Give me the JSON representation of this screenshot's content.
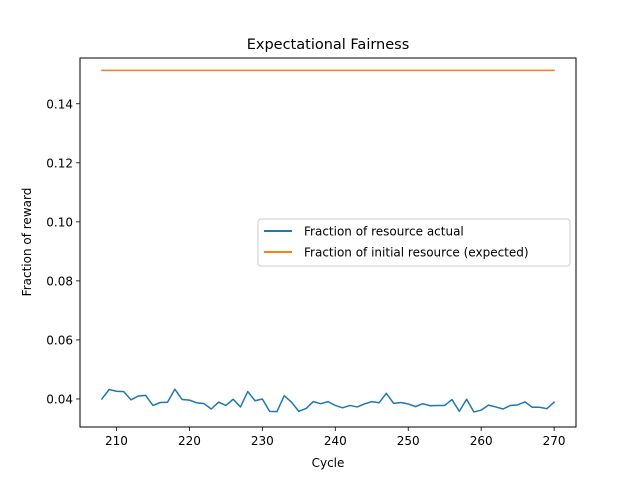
{
  "chart_data": {
    "type": "line",
    "title": "Expectational Fairness",
    "xlabel": "Cycle",
    "ylabel": "Fraction of reward",
    "xlim": [
      205,
      273
    ],
    "ylim": [
      0.0305,
      0.1555
    ],
    "xticks": [
      210,
      220,
      230,
      240,
      250,
      260,
      270
    ],
    "xtick_labels": [
      "210",
      "220",
      "230",
      "240",
      "250",
      "260",
      "270"
    ],
    "yticks": [
      0.04,
      0.06,
      0.08,
      0.1,
      0.12,
      0.14
    ],
    "ytick_labels": [
      "0.04",
      "0.06",
      "0.08",
      "0.10",
      "0.12",
      "0.14"
    ],
    "grid": false,
    "legend_position": "center-right",
    "x": [
      208,
      209,
      210,
      211,
      212,
      213,
      214,
      215,
      216,
      217,
      218,
      219,
      220,
      221,
      222,
      223,
      224,
      225,
      226,
      227,
      228,
      229,
      230,
      231,
      232,
      233,
      234,
      235,
      236,
      237,
      238,
      239,
      240,
      241,
      242,
      243,
      244,
      245,
      246,
      247,
      248,
      249,
      250,
      251,
      252,
      253,
      254,
      255,
      256,
      257,
      258,
      259,
      260,
      261,
      262,
      263,
      264,
      265,
      266,
      267,
      268,
      269,
      270
    ],
    "series": [
      {
        "name": "Fraction of resource actual",
        "color": "#1f77b4",
        "values": [
          0.04,
          0.0432,
          0.0426,
          0.0425,
          0.0397,
          0.041,
          0.0412,
          0.0378,
          0.0388,
          0.0389,
          0.0433,
          0.0398,
          0.0396,
          0.0387,
          0.0384,
          0.0366,
          0.0389,
          0.0378,
          0.0399,
          0.0373,
          0.0425,
          0.0394,
          0.04,
          0.0358,
          0.0357,
          0.0411,
          0.0389,
          0.0358,
          0.0368,
          0.0391,
          0.0384,
          0.0391,
          0.0378,
          0.037,
          0.0378,
          0.0373,
          0.0383,
          0.0391,
          0.0387,
          0.0419,
          0.0385,
          0.0388,
          0.0383,
          0.0374,
          0.0384,
          0.0377,
          0.0378,
          0.0378,
          0.0398,
          0.0358,
          0.0399,
          0.0356,
          0.0362,
          0.0379,
          0.0373,
          0.0366,
          0.0378,
          0.038,
          0.039,
          0.0372,
          0.0372,
          0.0367,
          0.0389
        ]
      },
      {
        "name": "Fraction of initial resource (expected)",
        "color": "#ff7f0e",
        "values": [
          0.1513,
          0.1513,
          0.1513,
          0.1513,
          0.1513,
          0.1513,
          0.1513,
          0.1513,
          0.1513,
          0.1513,
          0.1513,
          0.1513,
          0.1513,
          0.1513,
          0.1513,
          0.1513,
          0.1513,
          0.1513,
          0.1513,
          0.1513,
          0.1513,
          0.1513,
          0.1513,
          0.1513,
          0.1513,
          0.1513,
          0.1513,
          0.1513,
          0.1513,
          0.1513,
          0.1513,
          0.1513,
          0.1513,
          0.1513,
          0.1513,
          0.1513,
          0.1513,
          0.1513,
          0.1513,
          0.1513,
          0.1513,
          0.1513,
          0.1513,
          0.1513,
          0.1513,
          0.1513,
          0.1513,
          0.1513,
          0.1513,
          0.1513,
          0.1513,
          0.1513,
          0.1513,
          0.1513,
          0.1513,
          0.1513,
          0.1513,
          0.1513,
          0.1513,
          0.1513,
          0.1513,
          0.1513,
          0.1513
        ]
      }
    ]
  }
}
